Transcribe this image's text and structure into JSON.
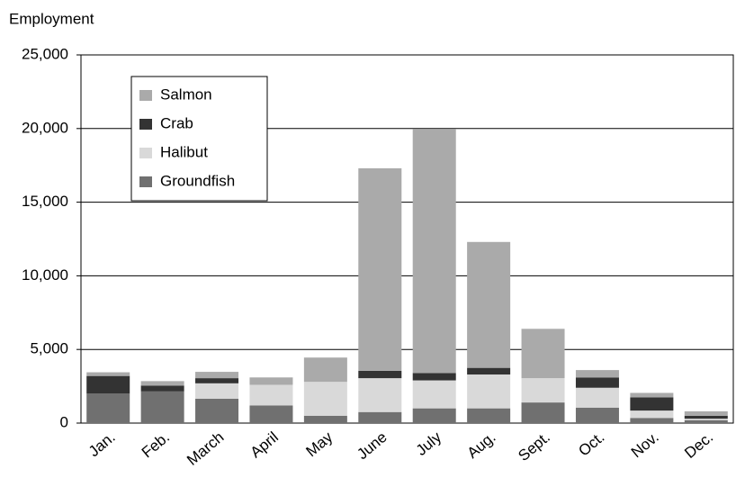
{
  "chart_data": {
    "type": "stacked_bar",
    "title": "Employment",
    "categories": [
      "Jan.",
      "Feb.",
      "March",
      "April",
      "May",
      "June",
      "July",
      "Aug.",
      "Sept.",
      "Oct.",
      "Nov.",
      "Dec."
    ],
    "series": [
      {
        "name": "Groundfish",
        "color": "#707070",
        "values": [
          2000,
          2150,
          1650,
          1200,
          500,
          750,
          1000,
          1000,
          1400,
          1050,
          350,
          200
        ]
      },
      {
        "name": "Halibut",
        "color": "#d9d9d9",
        "values": [
          0,
          0,
          1050,
          1400,
          2300,
          2300,
          1900,
          2300,
          1650,
          1350,
          500,
          100
        ]
      },
      {
        "name": "Crab",
        "color": "#333333",
        "values": [
          1200,
          400,
          350,
          0,
          0,
          500,
          500,
          450,
          0,
          700,
          900,
          200
        ]
      },
      {
        "name": "Salmon",
        "color": "#aaaaaa",
        "values": [
          250,
          300,
          430,
          500,
          1650,
          13750,
          16550,
          8550,
          3350,
          500,
          300,
          300
        ]
      }
    ],
    "ylim": [
      0,
      25000
    ],
    "yticks": [
      0,
      {
        "value": 5000,
        "label": "5,000"
      },
      {
        "value": 10000,
        "label": "10,000"
      },
      {
        "value": 15000,
        "label": "15,000"
      },
      {
        "value": 20000,
        "label": "20,000"
      },
      {
        "value": 25000,
        "label": "25,000"
      }
    ],
    "grid": true,
    "legend": "upper left"
  }
}
